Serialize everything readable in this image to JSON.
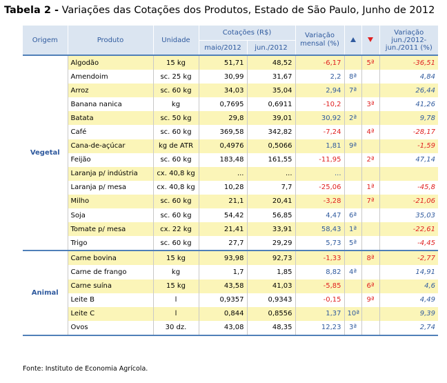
{
  "title": {
    "bold": "Tabela 2 -",
    "text": "Variações das Cotações dos Produtos, Estado de São Paulo, Junho de 2012"
  },
  "headers": {
    "origem": "Origem",
    "produto": "Produto",
    "unidade": "Unidade",
    "cotacoes": "Cotações (R$)",
    "maio": "maio/2012",
    "jun": "jun./2012",
    "variacao_mensal": "Variação mensal (%)",
    "up_icon": "triangle-up-icon",
    "down_icon": "triangle-down-icon",
    "variacao_anual": "Variação jun./2012-jun./2011 (%)"
  },
  "groups": [
    {
      "name": "Vegetal",
      "rows": [
        {
          "produto": "Algodão",
          "unidade": "15 kg",
          "maio": "51,71",
          "jun": "48,52",
          "var": "-6,17",
          "up": "",
          "down": "5ª",
          "anual": "-36,51"
        },
        {
          "produto": "Amendoim",
          "unidade": "sc. 25 kg",
          "maio": "30,99",
          "jun": "31,67",
          "var": "2,2",
          "up": "8ª",
          "down": "",
          "anual": "4,84"
        },
        {
          "produto": "Arroz",
          "unidade": "sc. 60 kg",
          "maio": "34,03",
          "jun": "35,04",
          "var": "2,94",
          "up": "7ª",
          "down": "",
          "anual": "26,44"
        },
        {
          "produto": "Banana nanica",
          "unidade": "kg",
          "maio": "0,7695",
          "jun": "0,6911",
          "var": "-10,2",
          "up": "",
          "down": "3ª",
          "anual": "41,26"
        },
        {
          "produto": "Batata",
          "unidade": "sc. 50 kg",
          "maio": "29,8",
          "jun": "39,01",
          "var": "30,92",
          "up": "2ª",
          "down": "",
          "anual": "9,78"
        },
        {
          "produto": "Café",
          "unidade": "sc. 60 kg",
          "maio": "369,58",
          "jun": "342,82",
          "var": "-7,24",
          "up": "",
          "down": "4ª",
          "anual": "-28,17"
        },
        {
          "produto": "Cana-de-açúcar",
          "unidade": "kg de ATR",
          "maio": "0,4976",
          "jun": "0,5066",
          "var": "1,81",
          "up": "9ª",
          "down": "",
          "anual": "-1,59"
        },
        {
          "produto": "Feijão",
          "unidade": "sc. 60 kg",
          "maio": "183,48",
          "jun": "161,55",
          "var": "-11,95",
          "up": "",
          "down": "2ª",
          "anual": "47,14"
        },
        {
          "produto": "Laranja p/ indústria",
          "unidade": "cx. 40,8 kg",
          "maio": "...",
          "jun": "...",
          "var": "...",
          "up": "",
          "down": "",
          "anual": ""
        },
        {
          "produto": "Laranja p/ mesa",
          "unidade": "cx. 40,8 kg",
          "maio": "10,28",
          "jun": "7,7",
          "var": "-25,06",
          "up": "",
          "down": "1ª",
          "anual": "-45,8"
        },
        {
          "produto": "Milho",
          "unidade": "sc. 60 kg",
          "maio": "21,1",
          "jun": "20,41",
          "var": "-3,28",
          "up": "",
          "down": "7ª",
          "anual": "-21,06"
        },
        {
          "produto": "Soja",
          "unidade": "sc. 60 kg",
          "maio": "54,42",
          "jun": "56,85",
          "var": "4,47",
          "up": "6ª",
          "down": "",
          "anual": "35,03"
        },
        {
          "produto": "Tomate p/ mesa",
          "unidade": "cx. 22 kg",
          "maio": "21,41",
          "jun": "33,91",
          "var": "58,43",
          "up": "1ª",
          "down": "",
          "anual": "-22,61"
        },
        {
          "produto": "Trigo",
          "unidade": "sc. 60 kg",
          "maio": "27,7",
          "jun": "29,29",
          "var": "5,73",
          "up": "5ª",
          "down": "",
          "anual": "-4,45"
        }
      ]
    },
    {
      "name": "Animal",
      "rows": [
        {
          "produto": "Carne bovina",
          "unidade": "15 kg",
          "maio": "93,98",
          "jun": "92,73",
          "var": "-1,33",
          "up": "",
          "down": "8ª",
          "anual": "-2,77"
        },
        {
          "produto": "Carne de frango",
          "unidade": "kg",
          "maio": "1,7",
          "jun": "1,85",
          "var": "8,82",
          "up": "4ª",
          "down": "",
          "anual": "14,91"
        },
        {
          "produto": "Carne suína",
          "unidade": "15 kg",
          "maio": "43,58",
          "jun": "41,03",
          "var": "-5,85",
          "up": "",
          "down": "6ª",
          "anual": "4,6"
        },
        {
          "produto": "Leite B",
          "unidade": "l",
          "maio": "0,9357",
          "jun": "0,9343",
          "var": "-0,15",
          "up": "",
          "down": "9ª",
          "anual": "4,49"
        },
        {
          "produto": "Leite C",
          "unidade": "l",
          "maio": "0,844",
          "jun": "0,8556",
          "var": "1,37",
          "up": "10ª",
          "down": "",
          "anual": "9,39"
        },
        {
          "produto": "Ovos",
          "unidade": "30 dz.",
          "maio": "43,08",
          "jun": "48,35",
          "var": "12,23",
          "up": "3ª",
          "down": "",
          "anual": "2,74"
        }
      ]
    }
  ],
  "source": "Fonte: Instituto de Economia Agrícola.",
  "colors": {
    "header_bg": "#dbe5f1",
    "header_text": "#2f5a9e",
    "highlight_row": "#fbf5b8",
    "positive": "#2f5a9e",
    "negative": "#e02020"
  }
}
